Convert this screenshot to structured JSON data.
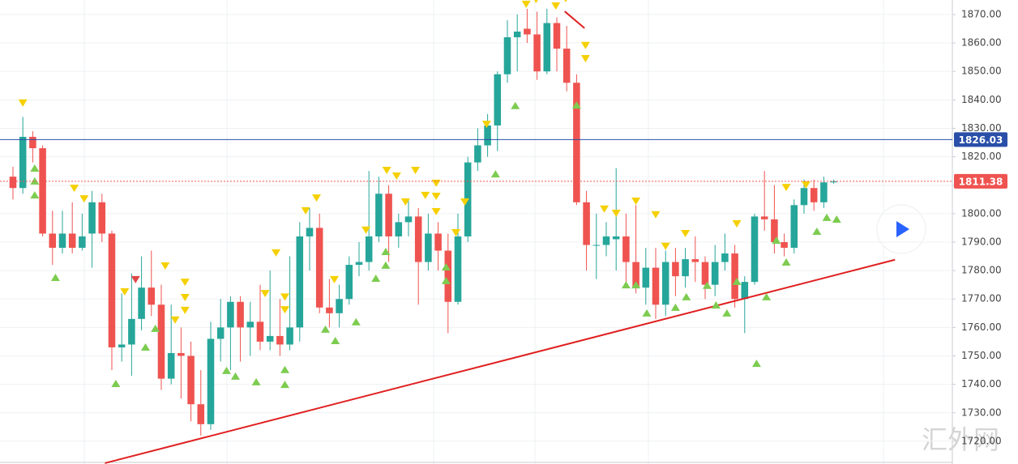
{
  "chart_data": {
    "type": "candlestick",
    "open": [
      1813,
      1809,
      1827,
      1823,
      1793,
      1788,
      1793,
      1788,
      1793,
      1804,
      1793,
      1753,
      1754,
      1763,
      1774,
      1768,
      1742,
      1751,
      1750,
      1733,
      1726,
      1756,
      1760,
      1769,
      1760,
      1762,
      1755,
      1757,
      1754,
      1760,
      1792,
      1795,
      1767,
      1765,
      1770,
      1782,
      1783,
      1792,
      1807,
      1792,
      1797,
      1799,
      1783,
      1793,
      1787,
      1769,
      1792,
      1818,
      1824,
      1831,
      1849,
      1862,
      1865,
      1863,
      1850,
      1867,
      1858,
      1846,
      1804,
      1789,
      1789,
      1791,
      1792,
      1783,
      1774,
      1781,
      1768,
      1783,
      1778,
      1784,
      1783,
      1775,
      1783,
      1786,
      1770,
      1776,
      1799,
      1798,
      1790,
      1788,
      1803,
      1809,
      1804,
      1811
    ],
    "high": [
      1816.5,
      1834,
      1829,
      1824,
      1801,
      1801,
      1804,
      1800,
      1808,
      1807,
      1794,
      1772,
      1779,
      1785,
      1787,
      1775,
      1768,
      1760,
      1755,
      1745,
      1762,
      1770,
      1771,
      1771,
      1769,
      1775,
      1780,
      1770,
      1785,
      1797,
      1802,
      1800,
      1777,
      1775,
      1785,
      1790,
      1815,
      1813,
      1810,
      1800,
      1805,
      1802,
      1800,
      1797,
      1793,
      1800,
      1820,
      1830,
      1835,
      1850,
      1868,
      1870,
      1872,
      1871,
      1872,
      1869,
      1866,
      1849,
      1808,
      1800,
      1797,
      1816,
      1800,
      1803,
      1788,
      1788,
      1787,
      1788,
      1788,
      1792,
      1785,
      1789,
      1793,
      1789,
      1778,
      1800,
      1815,
      1810,
      1793,
      1805,
      1812,
      1812,
      1813,
      1812
    ],
    "low": [
      1805,
      1807,
      1818,
      1792,
      1782,
      1786,
      1786,
      1787,
      1781,
      1790,
      1745,
      1748,
      1743,
      1759,
      1764,
      1738,
      1740,
      1735,
      1727,
      1722,
      1724,
      1748,
      1745,
      1748,
      1750,
      1752,
      1752,
      1750,
      1752,
      1755,
      1780,
      1765,
      1760,
      1760,
      1768,
      1778,
      1780,
      1790,
      1783,
      1788,
      1792,
      1768,
      1780,
      1780,
      1758,
      1768,
      1790,
      1815,
      1820,
      1822,
      1846,
      1850,
      1860,
      1847,
      1849,
      1850,
      1843,
      1803,
      1780,
      1777,
      1785,
      1780,
      1774,
      1772,
      1768,
      1763,
      1764,
      1771,
      1774,
      1776,
      1770,
      1771,
      1780,
      1767,
      1758,
      1775,
      1794,
      1786,
      1785,
      1786,
      1800,
      1801,
      1802,
      1810.5
    ],
    "close": [
      1809,
      1827,
      1823,
      1793,
      1788,
      1793,
      1788,
      1792,
      1804,
      1793,
      1753,
      1754,
      1763,
      1774,
      1768,
      1742,
      1751,
      1750,
      1733,
      1726,
      1756,
      1760,
      1769,
      1760,
      1762,
      1755,
      1757,
      1754,
      1760,
      1792,
      1795,
      1767,
      1765,
      1770,
      1782,
      1783,
      1792,
      1807,
      1792,
      1797,
      1799,
      1783,
      1793,
      1787,
      1769,
      1792,
      1818,
      1824,
      1831,
      1849,
      1862,
      1864,
      1863,
      1850,
      1867,
      1858,
      1846,
      1804,
      1789,
      1789,
      1792,
      1792,
      1783,
      1774,
      1781,
      1768,
      1783,
      1778,
      1784,
      1783,
      1775,
      1783,
      1786,
      1770,
      1776,
      1799,
      1798,
      1790,
      1788,
      1803,
      1809,
      1804,
      1811,
      1811.38
    ],
    "up_color": "#26a69a",
    "down_color": "#ef5350",
    "xlim": [
      -1.31,
      95.0
    ],
    "ylim": [
      1712.0,
      1875.1
    ],
    "yticks": [
      {
        "value": 1720,
        "label": "1720.00"
      },
      {
        "value": 1730,
        "label": "1730.00"
      },
      {
        "value": 1740,
        "label": "1740.00"
      },
      {
        "value": 1750,
        "label": "1750.00"
      },
      {
        "value": 1760,
        "label": "1760.00"
      },
      {
        "value": 1770,
        "label": "1770.00"
      },
      {
        "value": 1780,
        "label": "1780.00"
      },
      {
        "value": 1790,
        "label": "1790.00"
      },
      {
        "value": 1800,
        "label": "1800.00"
      },
      {
        "value": 1810,
        "label": "1810.00"
      },
      {
        "value": 1820,
        "label": "1820.00"
      },
      {
        "value": 1830,
        "label": "1830.00"
      },
      {
        "value": 1840,
        "label": "1840.00"
      },
      {
        "value": 1850,
        "label": "1850.00"
      },
      {
        "value": 1860,
        "label": "1860.00"
      },
      {
        "value": 1870,
        "label": "1870.00"
      }
    ],
    "grid": true,
    "price_lines": [
      {
        "value": 1826.03,
        "color": "#2a4fa8",
        "dashed": false
      },
      {
        "value": 1811.38,
        "color": "#ef5350",
        "dashed": true
      }
    ],
    "trendlines": [
      {
        "x": [
          9.3,
          89.2
        ],
        "y": [
          1712.3,
          1783.8
        ],
        "color": "#e02020"
      },
      {
        "x": [
          55.8,
          57.8
        ],
        "y": [
          1871.1,
          1865.2
        ],
        "color": "#e02020"
      }
    ],
    "markers": [
      {
        "direction": "down",
        "color": "#f5d000",
        "x": [
          1,
          6.2,
          7.2,
          11.3,
          15.4,
          17.4,
          17.4,
          17.4,
          16.4,
          25.5,
          26.6,
          27.5,
          27.5,
          29.6,
          30.7,
          32.5,
          35.7,
          37.8,
          38.8,
          39.7,
          40.7,
          41.7,
          42.8,
          42.8,
          42.8,
          44.8,
          45.7,
          47.9,
          51.9,
          52.9,
          54.9,
          55.9,
          57.9,
          57.9,
          59.8,
          61,
          63,
          65,
          66,
          68,
          73.2,
          78.2,
          80.2
        ],
        "y": [
          1837.6,
          1807.6,
          1803.9,
          1771.2,
          1780.3,
          1774.6,
          1769.2,
          1764.7,
          1761.3,
          1770.6,
          1784.9,
          1769.4,
          1764.9,
          1799.7,
          1804.2,
          1775.5,
          1792.9,
          1813.9,
          1811.9,
          1802.8,
          1813.9,
          1805.1,
          1809.4,
          1804.8,
          1799.4,
          1792.0,
          1802.8,
          1830.1,
          1872.3,
          1874.0,
          1871.7,
          1874.3,
          1857.8,
          1853.2,
          1800.3,
          1798.8,
          1803.1,
          1798.3,
          1787.2,
          1791.7,
          1795.1,
          1807.9,
          1808.8
        ]
      },
      {
        "direction": "down",
        "color": "#e04848",
        "x": [
          12.4
        ],
        "y": [
          1775.5
        ]
      },
      {
        "direction": "up",
        "color": "#7dcc50",
        "x": [
          2.2,
          2.2,
          2.2,
          4.3,
          10.4,
          13.4,
          14.4,
          21.6,
          22.5,
          24.6,
          27.5,
          27.5,
          31.6,
          32.6,
          34.7,
          36.7,
          37.7,
          37.7,
          43.8,
          43.8,
          48.8,
          50.8,
          57,
          62,
          63,
          64.1,
          67,
          68.1,
          70.2,
          71.1,
          72.2,
          73.2,
          75.2,
          76.2,
          77.2,
          78.2,
          81.3,
          82.3,
          83.3
        ],
        "y": [
          1817.3,
          1812.8,
          1807.9,
          1778.9,
          1741.6,
          1754.4,
          1761,
          1746.2,
          1744.2,
          1742.2,
          1746.5,
          1741.3,
          1760.7,
          1756.7,
          1763.3,
          1778.6,
          1788.0,
          1783.2,
          1782.6,
          1777.8,
          1815.3,
          1839.3,
          1839.5,
          1776.3,
          1776.3,
          1766.4,
          1768.4,
          1772.1,
          1776.1,
          1769.2,
          1766.4,
          1777.5,
          1748.7,
          1772.1,
          1792,
          1784.3,
          1795.1,
          1800,
          1799.4
        ]
      }
    ],
    "watermark": "汇外网"
  }
}
